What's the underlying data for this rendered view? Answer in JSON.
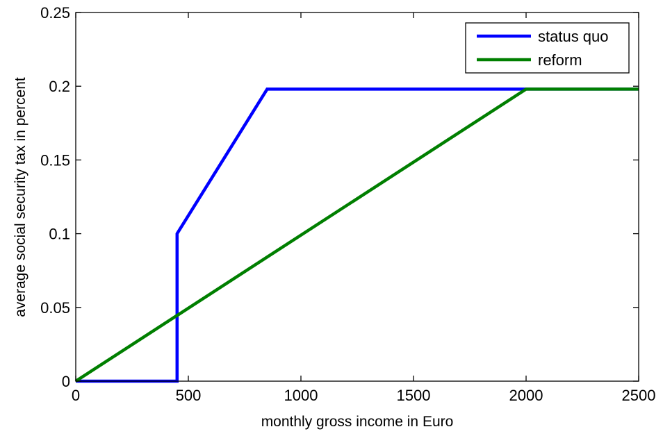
{
  "chart_data": {
    "type": "line",
    "xlabel": "monthly gross income in Euro",
    "ylabel": "average social security tax in percent",
    "xlim": [
      0,
      2500
    ],
    "ylim": [
      0,
      0.25
    ],
    "xticks": [
      0,
      500,
      1000,
      1500,
      2000,
      2500
    ],
    "yticks": [
      0,
      0.05,
      0.1,
      0.15,
      0.2,
      0.25
    ],
    "xtick_labels": [
      "0",
      "500",
      "1000",
      "1500",
      "2000",
      "2500"
    ],
    "ytick_labels": [
      "0",
      "0.05",
      "0.1",
      "0.15",
      "0.2",
      "0.25"
    ],
    "grid": false,
    "legend_position": "top-right",
    "series": [
      {
        "name": "status quo",
        "color": "#0000ff",
        "x": [
          0,
          450,
          450,
          850,
          2500
        ],
        "y": [
          0,
          0,
          0.1,
          0.198,
          0.198
        ]
      },
      {
        "name": "reform",
        "color": "#007f00",
        "x": [
          0,
          2000,
          2500
        ],
        "y": [
          0,
          0.198,
          0.198
        ]
      }
    ]
  }
}
